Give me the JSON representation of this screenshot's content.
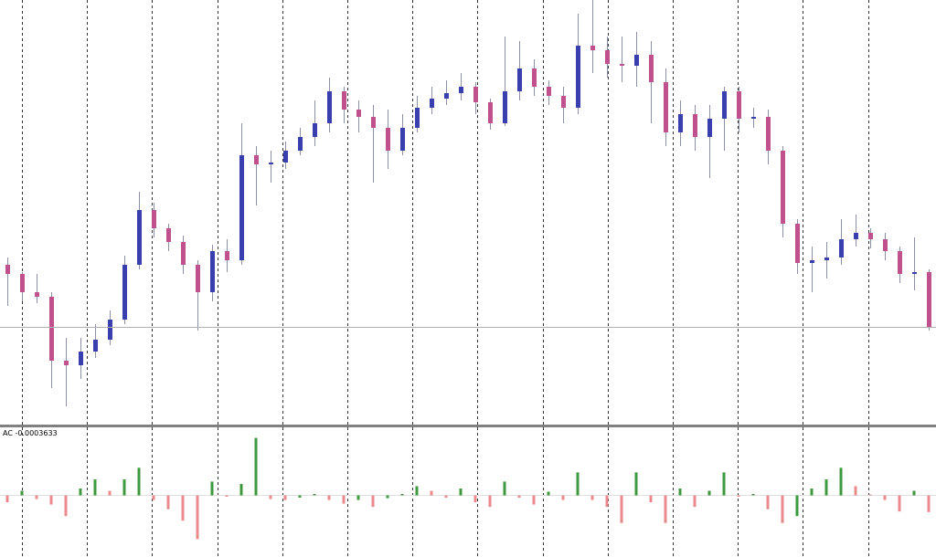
{
  "chart_data": [
    {
      "type": "candlestick",
      "ylim": [
        1.085,
        1.08965
      ],
      "colors": {
        "up": "#3a3fb0",
        "down": "#c0508e",
        "wick": "#8c8fa6",
        "price_line": "#b0b0b0"
      },
      "open": [
        1.08675,
        1.08665,
        1.08645,
        1.0864,
        1.0857,
        1.08565,
        1.0858,
        1.08593,
        1.08615,
        1.08675,
        1.08735,
        1.08715,
        1.087,
        1.08675,
        1.08645,
        1.0869,
        1.0868,
        1.08795,
        1.08785,
        1.08787,
        1.088,
        1.08815,
        1.0883,
        1.08865,
        1.08845,
        1.08837,
        1.08825,
        1.088,
        1.08825,
        1.08847,
        1.08857,
        1.08863,
        1.0887,
        1.08853,
        1.0883,
        1.08865,
        1.0889,
        1.0887,
        1.0886,
        1.08847,
        1.08915,
        1.0891,
        1.08895,
        1.08893,
        1.08905,
        1.08875,
        1.0882,
        1.0884,
        1.08815,
        1.08835,
        1.08865,
        1.08835,
        1.08837,
        1.088,
        1.0872,
        1.08677,
        1.0868,
        1.08683,
        1.08703,
        1.0871,
        1.08703,
        1.0869,
        1.08665,
        1.08667
      ],
      "high": [
        1.08683,
        1.08667,
        1.08665,
        1.08645,
        1.08595,
        1.08595,
        1.0861,
        1.08625,
        1.08685,
        1.08755,
        1.08743,
        1.0872,
        1.08707,
        1.0868,
        1.08697,
        1.08703,
        1.0883,
        1.08805,
        1.088,
        1.0881,
        1.08825,
        1.08855,
        1.0888,
        1.0887,
        1.08855,
        1.0885,
        1.08845,
        1.0884,
        1.0886,
        1.0887,
        1.08877,
        1.08885,
        1.08875,
        1.08857,
        1.08925,
        1.0892,
        1.089,
        1.08877,
        1.0887,
        1.0895,
        1.08965,
        1.08925,
        1.08925,
        1.0893,
        1.0892,
        1.0889,
        1.08855,
        1.0885,
        1.0885,
        1.0887,
        1.0887,
        1.08847,
        1.08845,
        1.08805,
        1.08725,
        1.08695,
        1.087,
        1.08725,
        1.0873,
        1.08715,
        1.0871,
        1.08695,
        1.08705,
        1.0867
      ],
      "low": [
        1.0863,
        1.08635,
        1.08633,
        1.0854,
        1.0852,
        1.0855,
        1.08573,
        1.08587,
        1.0861,
        1.0867,
        1.08705,
        1.0869,
        1.08665,
        1.08603,
        1.08635,
        1.08667,
        1.08675,
        1.0874,
        1.08765,
        1.0878,
        1.08795,
        1.08805,
        1.0882,
        1.0883,
        1.0882,
        1.08765,
        1.0878,
        1.08795,
        1.0882,
        1.0884,
        1.0885,
        1.08855,
        1.0884,
        1.08823,
        1.08827,
        1.08855,
        1.0886,
        1.0885,
        1.0883,
        1.0884,
        1.08885,
        1.0888,
        1.08875,
        1.0887,
        1.0883,
        1.08805,
        1.08805,
        1.088,
        1.0877,
        1.088,
        1.0882,
        1.08825,
        1.08785,
        1.08705,
        1.08665,
        1.08645,
        1.0866,
        1.08675,
        1.08695,
        1.08693,
        1.0868,
        1.08655,
        1.08647,
        1.08603
      ],
      "close": [
        1.08665,
        1.08645,
        1.0864,
        1.0857,
        1.08565,
        1.0858,
        1.08593,
        1.08615,
        1.08675,
        1.08735,
        1.08715,
        1.087,
        1.08675,
        1.08645,
        1.0869,
        1.0868,
        1.08795,
        1.08785,
        1.08787,
        1.088,
        1.08815,
        1.0883,
        1.08865,
        1.08845,
        1.08837,
        1.08825,
        1.088,
        1.08825,
        1.08847,
        1.08857,
        1.08863,
        1.0887,
        1.08853,
        1.0883,
        1.08865,
        1.0889,
        1.0887,
        1.0886,
        1.08847,
        1.08915,
        1.0891,
        1.08895,
        1.08893,
        1.08905,
        1.08875,
        1.0882,
        1.0884,
        1.08815,
        1.08835,
        1.08865,
        1.08835,
        1.08837,
        1.088,
        1.0872,
        1.08677,
        1.0868,
        1.08683,
        1.08703,
        1.0871,
        1.08703,
        1.0869,
        1.08665,
        1.08667,
        1.08607
      ]
    },
    {
      "type": "histogram",
      "name": "AC",
      "ylim": [
        -0.0013,
        0.0014
      ],
      "colors": {
        "up": "#3c9a3c",
        "down": "#e8898c",
        "zero": "#e0e0e0"
      },
      "values": [
        -0.00015,
        0.0001,
        -8e-05,
        -0.0002,
        -0.00045,
        0.00015,
        0.00035,
        0.0001,
        0.00035,
        0.0006,
        -0.0001,
        -0.0003,
        -0.00055,
        -0.00095,
        0.0003,
        -3e-05,
        0.00025,
        0.00125,
        -8e-05,
        -0.0001,
        -5e-05,
        3e-05,
        -0.0001,
        -0.00018,
        -0.0001,
        -0.00025,
        -6e-05,
        3e-05,
        0.0002,
        0.0001,
        -5e-05,
        0.00015,
        -0.00015,
        -0.00025,
        0.0003,
        -5e-05,
        -0.0002,
        8e-05,
        -0.0001,
        0.0005,
        -0.0001,
        -0.00025,
        -0.0006,
        0.0005,
        -0.00015,
        -0.0006,
        0.00015,
        -0.00025,
        0.0001,
        0.0005,
        -3e-05,
        3e-05,
        -0.0003,
        -0.0006,
        -0.00045,
        0.00015,
        0.00035,
        0.0006,
        0.0002,
        2e-05,
        -0.0001,
        -0.00035,
        0.0001,
        -0.0003633
      ]
    }
  ]
}
